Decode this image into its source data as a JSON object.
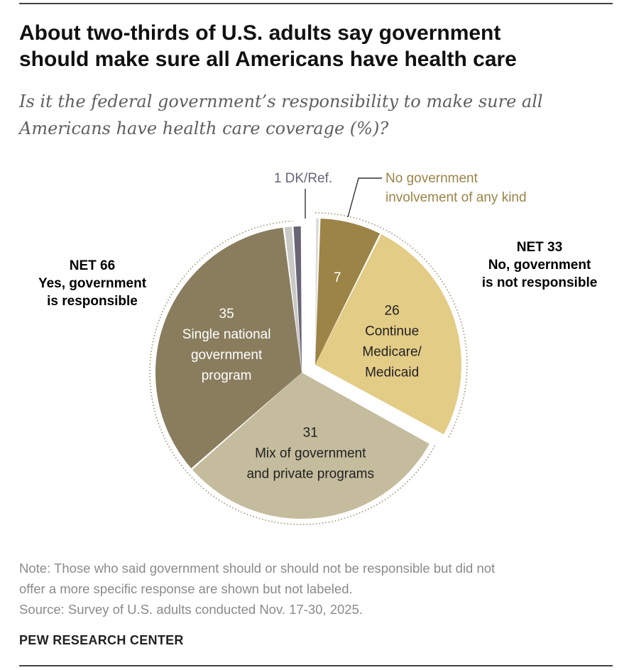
{
  "title_line1": "About two-thirds of U.S. adults say government",
  "title_line2": "should make sure all Americans have health care",
  "subtitle_line1": "Is it the federal government’s responsibility to make sure all",
  "subtitle_line2": "Americans have health care coverage (%)?",
  "net_yes": {
    "line1": "NET 66",
    "line2": "Yes, government",
    "line3": "is responsible"
  },
  "net_no": {
    "line1": "NET 33",
    "line2": "No, government",
    "line3": "is not responsible"
  },
  "note_line1": "Note: Those who said government should or should not be responsible but did not",
  "note_line2": "offer a more specific response are shown but not labeled.",
  "source": "Source: Survey of U.S. adults conducted Nov. 17-30, 2025.",
  "brand": "PEW RESEARCH CENTER",
  "colors": {
    "no_involvement": "#9c8447",
    "continue_medicare": "#e3cc86",
    "mix": "#c4bc9d",
    "single_program": "#8a7d5e",
    "yes_unlabeled": "#c9c9c6",
    "dk_ref": "#6a6477",
    "no_unlabeled": "#dcdcda",
    "outline": "#a09070"
  },
  "chart_data": {
    "type": "pie",
    "title": "About two-thirds of U.S. adults say government should make sure all Americans have health care",
    "start": "12 o'clock",
    "direction": "clockwise",
    "slices": [
      {
        "key": "no_unlabeled",
        "label": "",
        "value": 0.5,
        "group": "no",
        "exploded": true
      },
      {
        "key": "no_involvement",
        "label": "No government involvement of any kind",
        "value": 7,
        "value_text": "7",
        "group": "no",
        "exploded": true
      },
      {
        "key": "continue_medicare",
        "label": "Continue Medicare/ Medicaid",
        "value": 26,
        "value_text": "26",
        "lines": [
          "Continue",
          "Medicare/",
          "Medicaid"
        ],
        "group": "no",
        "exploded": true
      },
      {
        "key": "mix",
        "label": "Mix of government and private programs",
        "value": 31,
        "value_text": "31",
        "lines": [
          "Mix of government",
          "and private programs"
        ],
        "group": "yes",
        "exploded": false
      },
      {
        "key": "single_program",
        "label": "Single national government program",
        "value": 35,
        "value_text": "35",
        "lines": [
          "Single national",
          "government",
          "program"
        ],
        "group": "yes",
        "exploded": false
      },
      {
        "key": "yes_unlabeled",
        "label": "",
        "value": 1,
        "group": "yes",
        "exploded": false
      },
      {
        "key": "dk_ref",
        "label": "1 DK/Ref.",
        "value": 1,
        "value_text": "1",
        "group": "dk",
        "exploded": false
      }
    ],
    "callouts": {
      "dk_ref": "1 DK/Ref.",
      "no_involvement_line1": "No government",
      "no_involvement_line2": "involvement of any kind"
    },
    "groups": [
      {
        "key": "yes",
        "label": "Yes, government is responsible",
        "net": 66
      },
      {
        "key": "no",
        "label": "No, government is not responsible",
        "net": 33
      }
    ]
  }
}
